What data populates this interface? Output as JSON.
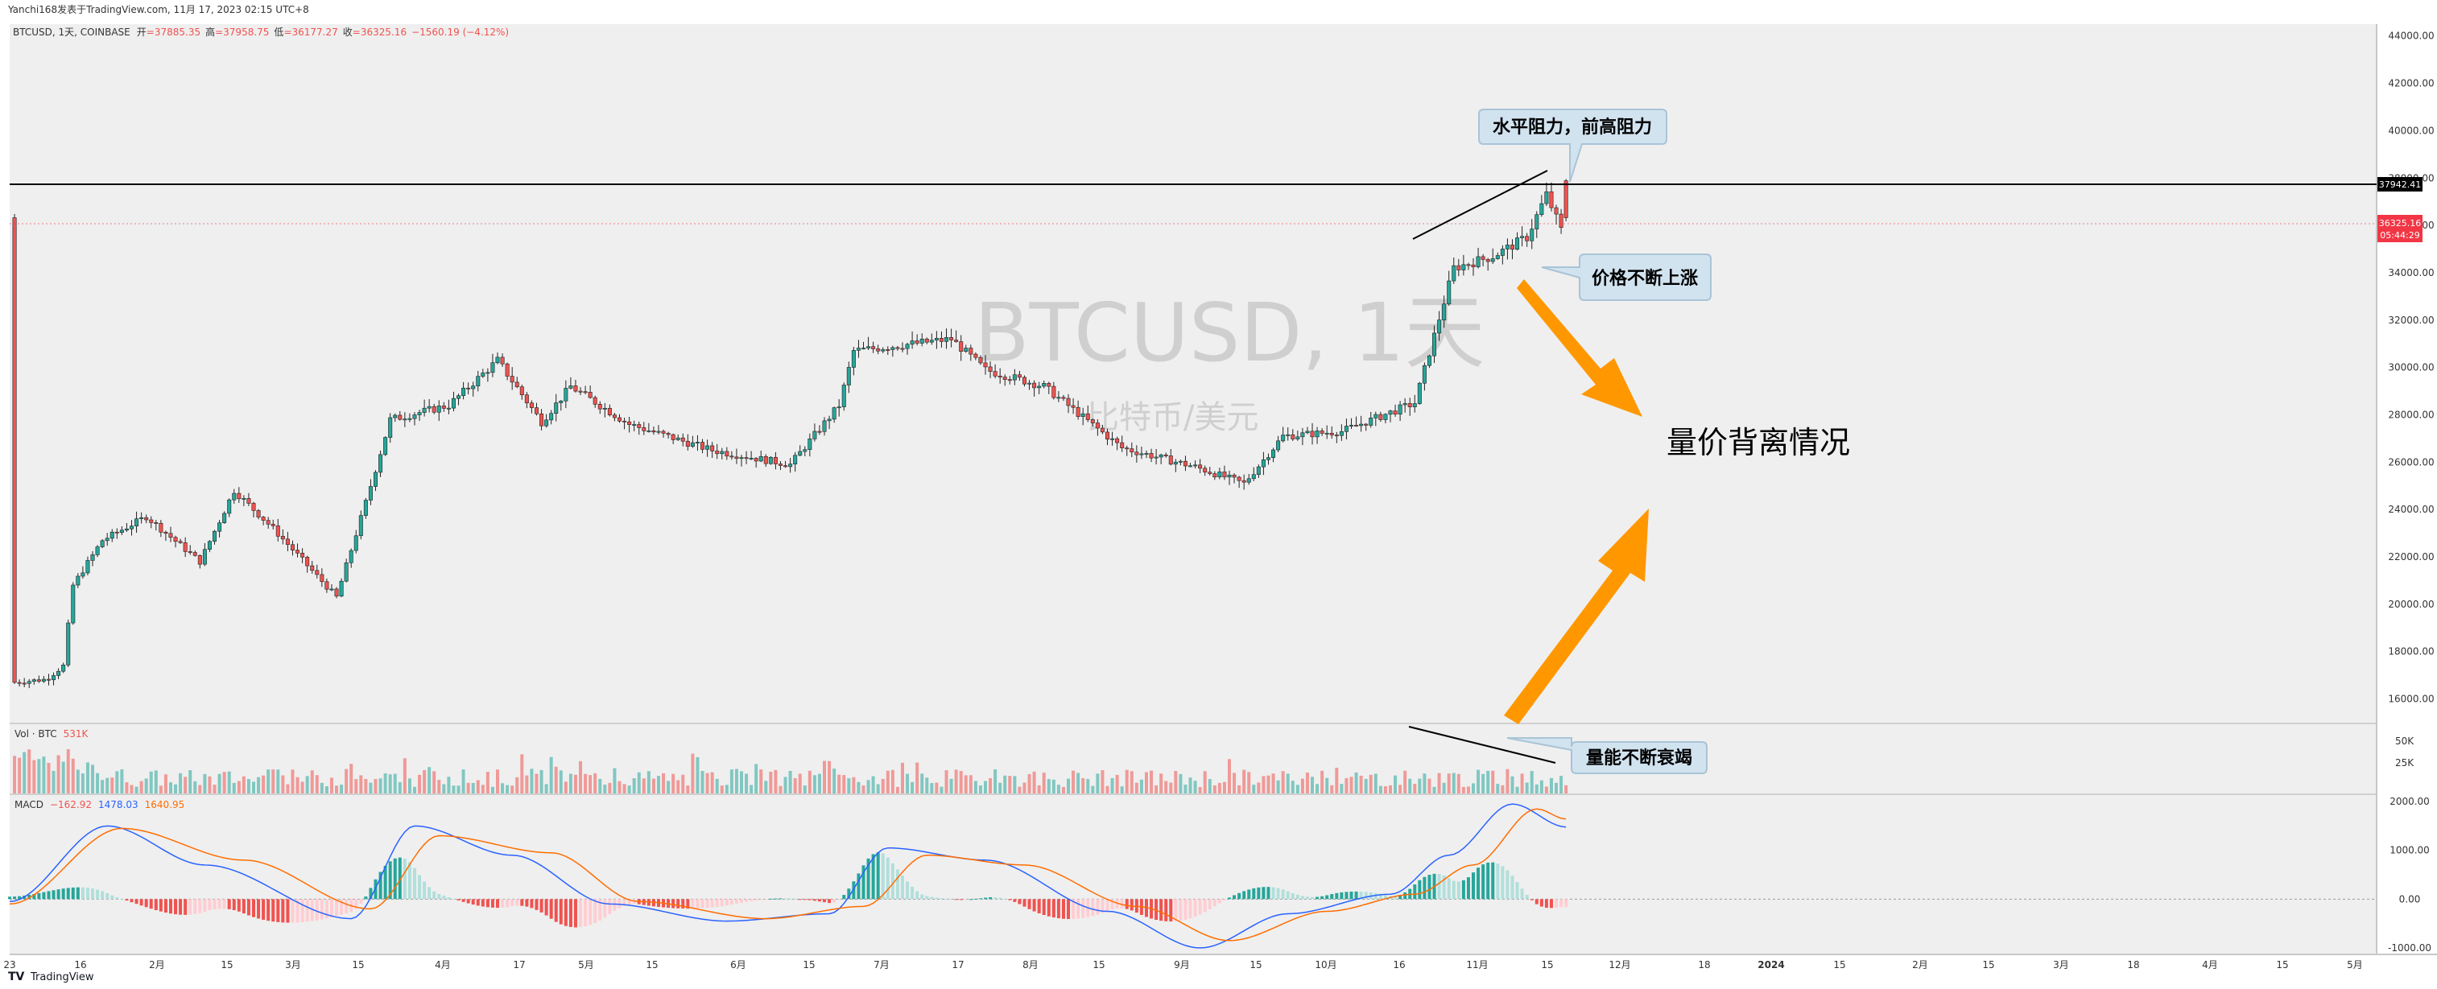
{
  "header": {
    "published": "Yanchi168发表于TradingView.com, 11月 17, 2023 02:15 UTC+8",
    "symbol_line": "BTCUSD, 1天, COINBASE",
    "open_label": "开",
    "open": "=37885.35",
    "high_label": "高",
    "high": "=37958.75",
    "low_label": "低",
    "low": "=36177.27",
    "close_label": "收",
    "close": "=36325.16",
    "change": "−1560.19 (−4.12%)"
  },
  "watermark": {
    "main": "BTCUSD, 1天",
    "sub": "比特币/美元"
  },
  "price_tags": {
    "resistance": "37942.41",
    "last_price": "36325.16",
    "countdown": "05:44:29"
  },
  "annotations": {
    "resistance": "水平阻力，前高阻力",
    "price_up": "价格不断上涨",
    "divergence": "量价背离情况",
    "volume_down": "量能不断衰竭"
  },
  "volume_legend": {
    "label": "Vol · BTC",
    "value": "531K"
  },
  "macd_legend": {
    "label": "MACD",
    "hist": "−162.92",
    "macd": "1478.03",
    "signal": "1640.95"
  },
  "footer": {
    "brand": "TradingView"
  },
  "colors": {
    "up": "#26a69a",
    "down": "#ef5350",
    "panel_bg": "#efefef",
    "macd_line": "#2962ff",
    "signal_line": "#ff6d00",
    "arrow": "#ff9800",
    "price_tag": "#f23645"
  },
  "chart_data": [
    {
      "type": "candlestick",
      "title": "BTCUSD, 1天, COINBASE",
      "ylim": [
        15000,
        44500
      ],
      "y_ticks": [
        "44000.00",
        "42000.00",
        "40000.00",
        "38000.00",
        "36000.00",
        "34000.00",
        "32000.00",
        "30000.00",
        "28000.00",
        "26000.00",
        "24000.00",
        "22000.00",
        "20000.00",
        "18000.00",
        "16000.00"
      ],
      "x_ticks": [
        "23",
        "16",
        "2月",
        "15",
        "3月",
        "15",
        "4月",
        "17",
        "5月",
        "15",
        "6月",
        "15",
        "7月",
        "17",
        "8月",
        "15",
        "9月",
        "15",
        "10月",
        "16",
        "11月",
        "15",
        "12月",
        "18",
        "2024",
        "15",
        "2月",
        "15",
        "3月",
        "18",
        "4月",
        "15",
        "5月"
      ],
      "horizontal_lines": [
        37942.41,
        36325.16
      ],
      "trend_line": {
        "from": [
          "10月16",
          33000
        ],
        "to": [
          "11月17",
          38000
        ]
      },
      "close_path": [
        [
          "1月9",
          16900
        ],
        [
          "1月12",
          17400
        ],
        [
          "1月14",
          20800
        ],
        [
          "1月20",
          22700
        ],
        [
          "1月29",
          23700
        ],
        [
          "2月9",
          21800
        ],
        [
          "2月16",
          24800
        ],
        [
          "2月24",
          23200
        ],
        [
          "3月9",
          20300
        ],
        [
          "3月15",
          24300
        ],
        [
          "3月20",
          27800
        ],
        [
          "4月1",
          28400
        ],
        [
          "4月11",
          30300
        ],
        [
          "4月20",
          27700
        ],
        [
          "4月26",
          29200
        ],
        [
          "5月8",
          27600
        ],
        [
          "5月25",
          26500
        ],
        [
          "6月10",
          25900
        ],
        [
          "6月20",
          28400
        ],
        [
          "6月23",
          30700
        ],
        [
          "7月13",
          31200
        ],
        [
          "7月20",
          29900
        ],
        [
          "8月1",
          29200
        ],
        [
          "8月17",
          26600
        ],
        [
          "9月1",
          25800
        ],
        [
          "9月11",
          25100
        ],
        [
          "9月19",
          27100
        ],
        [
          "10月1",
          27300
        ],
        [
          "10月16",
          28500
        ],
        [
          "10月24",
          34200
        ],
        [
          "11月1",
          34700
        ],
        [
          "11月8",
          35500
        ],
        [
          "11月12",
          37300
        ],
        [
          "11月15",
          35800
        ],
        [
          "11月16",
          36325
        ]
      ],
      "last_candle": {
        "open": 37885.35,
        "high": 37958.75,
        "low": 36177.27,
        "close": 36325.16
      }
    },
    {
      "type": "bar",
      "title": "Vol · BTC",
      "y_ticks": [
        "50K",
        "25K"
      ],
      "last_value": "531K",
      "trend_line": "falling"
    },
    {
      "type": "line",
      "title": "MACD",
      "y_ticks": [
        "2000.00",
        "1000.00",
        "0.00",
        "-1000.00"
      ],
      "ylim": [
        -1100,
        2100
      ],
      "series": [
        {
          "name": "MACD",
          "path": [
            [
              "1月1",
              -50
            ],
            [
              "1月21",
              1500
            ],
            [
              "2月10",
              700
            ],
            [
              "3月12",
              -400
            ],
            [
              "3月25",
              1500
            ],
            [
              "4月14",
              900
            ],
            [
              "5月4",
              -100
            ],
            [
              "5月28",
              -450
            ],
            [
              "6月18",
              -300
            ],
            [
              "6月30",
              1050
            ],
            [
              "7月20",
              800
            ],
            [
              "8月14",
              -250
            ],
            [
              "9月2",
              -1000
            ],
            [
              "9月20",
              -300
            ],
            [
              "10月11",
              100
            ],
            [
              "10月23",
              900
            ],
            [
              "11月5",
              1950
            ],
            [
              "11月16",
              1478
            ]
          ]
        },
        {
          "name": "Signal",
          "path": [
            [
              "1月1",
              -100
            ],
            [
              "1月24",
              1450
            ],
            [
              "2月18",
              800
            ],
            [
              "3月16",
              -200
            ],
            [
              "3月30",
              1300
            ],
            [
              "4月22",
              950
            ],
            [
              "5月10",
              -50
            ],
            [
              "6月5",
              -400
            ],
            [
              "6月25",
              -150
            ],
            [
              "7月8",
              900
            ],
            [
              "7月28",
              700
            ],
            [
              "8月20",
              -150
            ],
            [
              "9月8",
              -850
            ],
            [
              "9月28",
              -250
            ],
            [
              "10月16",
              100
            ],
            [
              "10月28",
              700
            ],
            [
              "11月10",
              1850
            ],
            [
              "11月16",
              1640.95
            ]
          ]
        },
        {
          "name": "Histogram",
          "last": -162.92
        }
      ]
    }
  ]
}
